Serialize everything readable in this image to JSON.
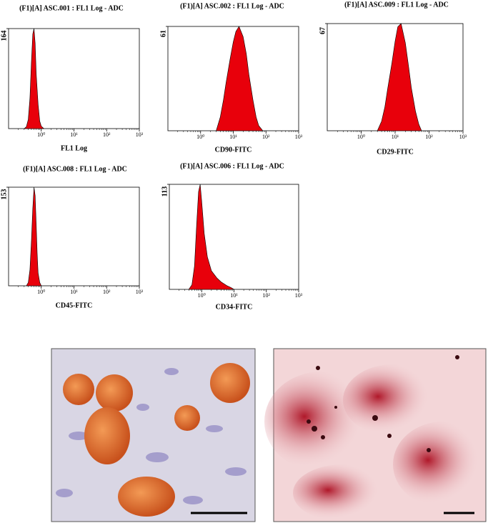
{
  "chart_data": [
    {
      "type": "area",
      "title": "(F1)[A] ASC.001 : FL1 Log - ADC",
      "x_label": "FL1 Log",
      "log_x": true,
      "color": "#e8000b",
      "x": [
        0.3,
        0.35,
        0.4,
        0.45,
        0.5,
        0.55,
        0.6,
        0.65,
        0.7,
        0.8,
        0.9,
        1.0,
        1.2
      ],
      "values": [
        0,
        3,
        15,
        50,
        110,
        155,
        164,
        140,
        90,
        40,
        12,
        4,
        0
      ],
      "xlim": [
        0.1,
        1000
      ],
      "ylim": [
        0,
        164
      ],
      "xticks": [
        {
          "value": 1,
          "label": "10⁰"
        },
        {
          "value": 10,
          "label": "10¹"
        },
        {
          "value": 100,
          "label": "10²"
        },
        {
          "value": 1000,
          "label": "10³"
        }
      ],
      "yticks": [
        164
      ]
    },
    {
      "type": "area",
      "title": "(F1)[A] ASC.002 : FL1 Log - ADC",
      "x_label": "CD90-FITC",
      "log_x": true,
      "color": "#e8000b",
      "x": [
        3,
        4,
        5,
        6,
        8,
        10,
        12,
        15,
        20,
        25,
        30,
        40,
        50,
        60,
        80
      ],
      "values": [
        0,
        8,
        18,
        28,
        42,
        52,
        58,
        61,
        55,
        45,
        33,
        18,
        8,
        3,
        0
      ],
      "xlim": [
        0.1,
        1000
      ],
      "ylim": [
        0,
        61
      ],
      "xticks": [
        {
          "value": 1,
          "label": "10⁰"
        },
        {
          "value": 10,
          "label": "10¹"
        },
        {
          "value": 100,
          "label": "10²"
        },
        {
          "value": 1000,
          "label": "10³"
        }
      ],
      "yticks": [
        61
      ]
    },
    {
      "type": "area",
      "title": "(F1)[A] ASC.009 : FL1 Log - ADC",
      "x_label": "CD29-FITC",
      "log_x": true,
      "color": "#e8000b",
      "x": [
        3,
        4,
        5,
        6,
        8,
        10,
        12,
        15,
        20,
        25,
        30,
        40,
        50,
        60
      ],
      "values": [
        0,
        6,
        15,
        26,
        42,
        56,
        65,
        67,
        55,
        40,
        27,
        12,
        4,
        0
      ],
      "xlim": [
        0.1,
        1000
      ],
      "ylim": [
        0,
        67
      ],
      "xticks": [
        {
          "value": 1,
          "label": "10⁰"
        },
        {
          "value": 10,
          "label": "10¹"
        },
        {
          "value": 100,
          "label": "10²"
        },
        {
          "value": 1000,
          "label": "10³"
        }
      ],
      "yticks": [
        67
      ]
    },
    {
      "type": "area",
      "title": "(F1)[A] ASC.008 : FL1 Log - ADC",
      "x_label": "CD45-FITC",
      "log_x": true,
      "color": "#e8000b",
      "x": [
        0.35,
        0.4,
        0.45,
        0.5,
        0.55,
        0.6,
        0.65,
        0.7,
        0.75,
        0.8,
        0.9,
        1.0
      ],
      "values": [
        0,
        5,
        25,
        70,
        120,
        153,
        140,
        95,
        50,
        20,
        5,
        0
      ],
      "xlim": [
        0.1,
        1000
      ],
      "ylim": [
        0,
        153
      ],
      "xticks": [
        {
          "value": 1,
          "label": "10⁰"
        },
        {
          "value": 10,
          "label": "10¹"
        },
        {
          "value": 100,
          "label": "10²"
        },
        {
          "value": 1000,
          "label": "10³"
        }
      ],
      "yticks": [
        153
      ]
    },
    {
      "type": "area",
      "title": "(F1)[A] ASC.006 : FL1 Log - ADC",
      "x_label": "CD34-FITC",
      "log_x": true,
      "color": "#e8000b",
      "x": [
        0.4,
        0.5,
        0.6,
        0.7,
        0.8,
        0.9,
        1.0,
        1.2,
        1.5,
        2,
        3,
        4,
        6,
        8,
        10
      ],
      "values": [
        0,
        5,
        25,
        70,
        105,
        113,
        95,
        60,
        35,
        20,
        12,
        8,
        4,
        2,
        0
      ],
      "xlim": [
        0.1,
        1000
      ],
      "ylim": [
        0,
        113
      ],
      "xticks": [
        {
          "value": 1,
          "label": "10⁰"
        },
        {
          "value": 10,
          "label": "10¹"
        },
        {
          "value": 100,
          "label": "10²"
        },
        {
          "value": 1000,
          "label": "10³"
        }
      ],
      "yticks": [
        113
      ]
    }
  ]
}
